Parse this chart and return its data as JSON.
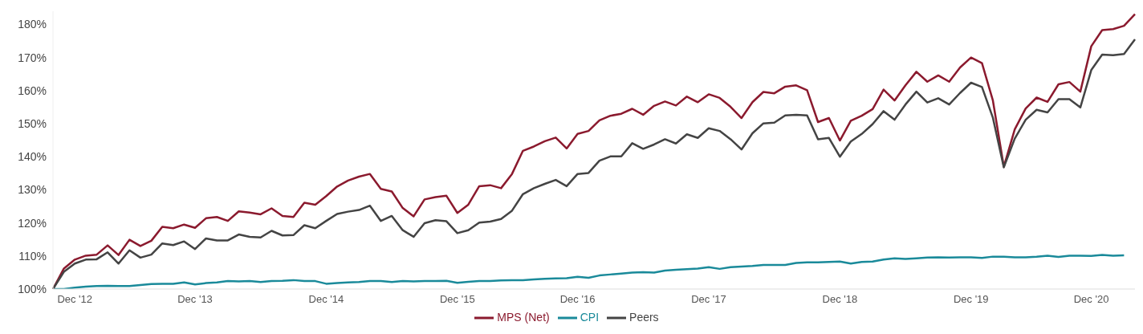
{
  "chart_data": {
    "type": "line",
    "categories": [
      null,
      null,
      "Dec '12",
      null,
      null,
      null,
      null,
      null,
      null,
      null,
      null,
      null,
      null,
      "Dec '13",
      null,
      null,
      null,
      null,
      null,
      null,
      null,
      null,
      null,
      null,
      null,
      "Dec '14",
      null,
      null,
      null,
      null,
      null,
      null,
      null,
      null,
      null,
      null,
      null,
      "Dec '15",
      null,
      null,
      null,
      null,
      null,
      null,
      null,
      null,
      null,
      null,
      "Dec '16",
      null,
      null,
      null,
      null,
      null,
      null,
      null,
      null,
      null,
      null,
      null,
      "Dec '17",
      null,
      null,
      null,
      null,
      null,
      null,
      null,
      null,
      null,
      null,
      null,
      "Dec '18",
      null,
      null,
      null,
      null,
      null,
      null,
      null,
      null,
      null,
      null,
      null,
      "Dec '19",
      null,
      null,
      null,
      null,
      null,
      null,
      null,
      null,
      null,
      null,
      "Dec '20",
      null,
      null,
      null,
      null
    ],
    "series": [
      {
        "name": "MPS (Net)",
        "color": "#8b1a2e",
        "values": [
          100,
          106.2,
          108.9,
          110.1,
          110.4,
          113.2,
          110.3,
          114.9,
          113.0,
          114.6,
          118.8,
          118.4,
          119.5,
          118.5,
          121.4,
          121.8,
          120.6,
          123.5,
          123.1,
          122.6,
          124.4,
          122.1,
          121.8,
          126.1,
          125.5,
          128.1,
          131.0,
          132.8,
          134.0,
          134.8,
          130.3,
          129.5,
          124.5,
          122.0,
          127.1,
          127.8,
          128.2,
          123.0,
          125.5,
          131.1,
          131.4,
          130.5,
          134.8,
          141.8,
          143.1,
          144.7,
          145.8,
          142.5,
          146.9,
          147.8,
          151.0,
          152.4,
          153.0,
          154.5,
          152.7,
          155.4,
          156.7,
          155.5,
          158.2,
          156.5,
          158.9,
          157.8,
          155.1,
          151.7,
          156.5,
          159.6,
          159.2,
          161.2,
          161.6,
          160.1,
          150.5,
          151.7,
          144.9,
          150.9,
          152.4,
          154.4,
          160.3,
          157.0,
          161.6,
          165.7,
          162.7,
          164.6,
          162.7,
          167.0,
          170.0,
          168.3,
          157.0,
          137.0,
          148.3,
          154.6,
          157.9,
          156.6,
          161.9,
          162.6,
          159.7,
          173.4,
          178.3,
          178.6,
          179.6,
          183.1
        ]
      },
      {
        "name": "CPI",
        "color": "#1a8a9a",
        "values": [
          100,
          100,
          100.4,
          100.7,
          100.9,
          101.0,
          100.9,
          100.9,
          101.2,
          101.5,
          101.6,
          101.6,
          102.0,
          101.4,
          101.8,
          102.0,
          102.4,
          102.3,
          102.4,
          102.1,
          102.4,
          102.5,
          102.7,
          102.4,
          102.4,
          101.6,
          101.8,
          102.0,
          102.1,
          102.4,
          102.4,
          102.1,
          102.4,
          102.3,
          102.4,
          102.4,
          102.5,
          101.9,
          102.2,
          102.4,
          102.4,
          102.6,
          102.7,
          102.7,
          102.9,
          103.1,
          103.2,
          103.3,
          103.7,
          103.4,
          104.1,
          104.4,
          104.7,
          105.0,
          105.1,
          105.0,
          105.6,
          105.8,
          106.0,
          106.2,
          106.6,
          106.1,
          106.6,
          106.8,
          107.0,
          107.3,
          107.3,
          107.3,
          107.9,
          108.1,
          108.1,
          108.2,
          108.3,
          107.7,
          108.2,
          108.3,
          108.9,
          109.3,
          109.1,
          109.3,
          109.5,
          109.6,
          109.5,
          109.6,
          109.6,
          109.4,
          109.8,
          109.8,
          109.6,
          109.6,
          109.8,
          110.1,
          109.7,
          110.1,
          110.1,
          110.0,
          110.3,
          110.1,
          110.2,
          null
        ]
      },
      {
        "name": "Peers",
        "color": "#444444",
        "values": [
          100,
          105.2,
          107.7,
          108.9,
          109.0,
          111.1,
          107.7,
          111.7,
          109.5,
          110.4,
          113.8,
          113.3,
          114.4,
          112.1,
          115.3,
          114.7,
          114.7,
          116.5,
          115.8,
          115.6,
          117.6,
          116.2,
          116.3,
          119.3,
          118.4,
          120.6,
          122.7,
          123.4,
          123.9,
          125.2,
          120.6,
          122.1,
          117.8,
          115.8,
          119.9,
          120.8,
          120.5,
          116.9,
          117.8,
          120.1,
          120.4,
          121.2,
          123.7,
          128.7,
          130.5,
          131.8,
          133.0,
          131.1,
          134.8,
          135.1,
          138.8,
          140.1,
          140.1,
          144.1,
          142.4,
          143.7,
          145.3,
          144.0,
          146.8,
          145.7,
          148.6,
          147.8,
          145.3,
          142.2,
          147.1,
          150.1,
          150.3,
          152.5,
          152.7,
          152.5,
          145.3,
          145.7,
          140.0,
          144.6,
          146.9,
          149.9,
          153.8,
          151.2,
          155.8,
          159.7,
          156.4,
          157.7,
          155.8,
          159.3,
          162.4,
          161.1,
          151.8,
          136.8,
          145.5,
          151.2,
          154.2,
          153.4,
          157.4,
          157.4,
          154.9,
          166.2,
          170.9,
          170.7,
          171.1,
          175.5
        ]
      }
    ],
    "ylim": [
      100,
      184
    ],
    "yticks": [
      {
        "value": 100,
        "label": "100%"
      },
      {
        "value": 110,
        "label": "110%"
      },
      {
        "value": 120,
        "label": "120%"
      },
      {
        "value": 130,
        "label": "130%"
      },
      {
        "value": 140,
        "label": "140%"
      },
      {
        "value": 150,
        "label": "150%"
      },
      {
        "value": 160,
        "label": "160%"
      },
      {
        "value": 170,
        "label": "170%"
      },
      {
        "value": 180,
        "label": "180%"
      }
    ],
    "grid": false,
    "legend": "bottom",
    "marker": "none",
    "line_style": "solid"
  }
}
